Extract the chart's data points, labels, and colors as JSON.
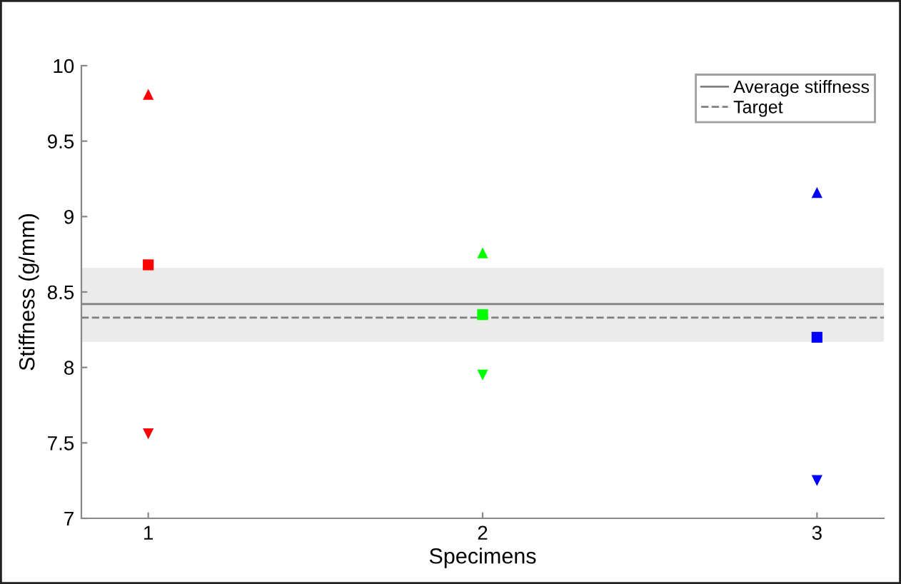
{
  "chart_data": {
    "type": "scatter",
    "xlabel": "Specimens",
    "ylabel": "Stiffness (g/mm)",
    "x": [
      1,
      2,
      3
    ],
    "xlim": [
      0.8,
      3.2
    ],
    "xticks": [
      1,
      2,
      3
    ],
    "ylim": [
      7,
      10
    ],
    "yticks": [
      7,
      7.5,
      8,
      8.5,
      9,
      9.5,
      10
    ],
    "series": [
      {
        "marker": "triangle",
        "colors": [
          "#ff0000",
          "#00ff00",
          "#0000ff"
        ],
        "values": [
          9.81,
          8.76,
          9.16
        ]
      },
      {
        "marker": "square",
        "colors": [
          "#ff0000",
          "#00ff00",
          "#0000ff"
        ],
        "values": [
          8.68,
          8.35,
          8.2
        ]
      },
      {
        "marker": "triangle_down",
        "colors": [
          "#ff0000",
          "#00ff00",
          "#0000ff"
        ],
        "values": [
          7.56,
          7.95,
          7.25
        ]
      }
    ],
    "bands": [
      {
        "axis": "y",
        "from": 8.17,
        "to": 8.66,
        "color": "#ebebeb"
      }
    ],
    "ref_lines": [
      {
        "axis": "y",
        "value": 8.42,
        "label": "Average stiffness",
        "color": "#808080",
        "line_style": "solid"
      },
      {
        "axis": "y",
        "value": 8.33,
        "label": "Target",
        "color": "#808080",
        "line_style": "dashed"
      }
    ],
    "legend": "top right",
    "grid": false
  }
}
